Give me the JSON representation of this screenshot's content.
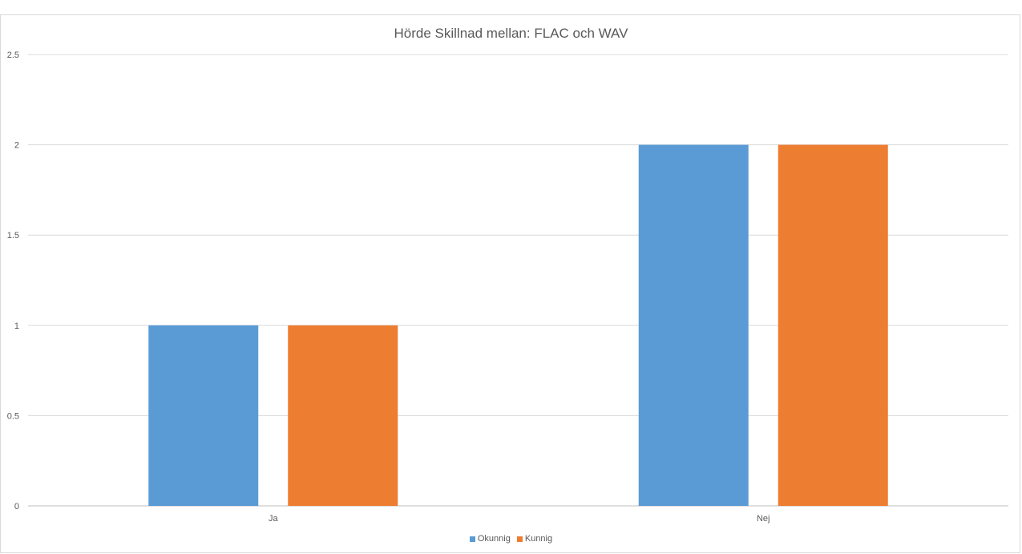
{
  "chart_data": {
    "type": "bar",
    "title": "Hörde Skillnad mellan: FLAC och WAV",
    "categories": [
      "Ja",
      "Nej"
    ],
    "series": [
      {
        "name": "Okunnig",
        "values": [
          1,
          2
        ],
        "color": "#5b9bd5"
      },
      {
        "name": "Kunnig",
        "values": [
          1,
          2
        ],
        "color": "#ed7d31"
      }
    ],
    "ylim": [
      0,
      2.5
    ],
    "yticks": [
      "0",
      "0.5",
      "1",
      "1.5",
      "2",
      "2.5"
    ],
    "grid": true,
    "legend": "bottom"
  }
}
